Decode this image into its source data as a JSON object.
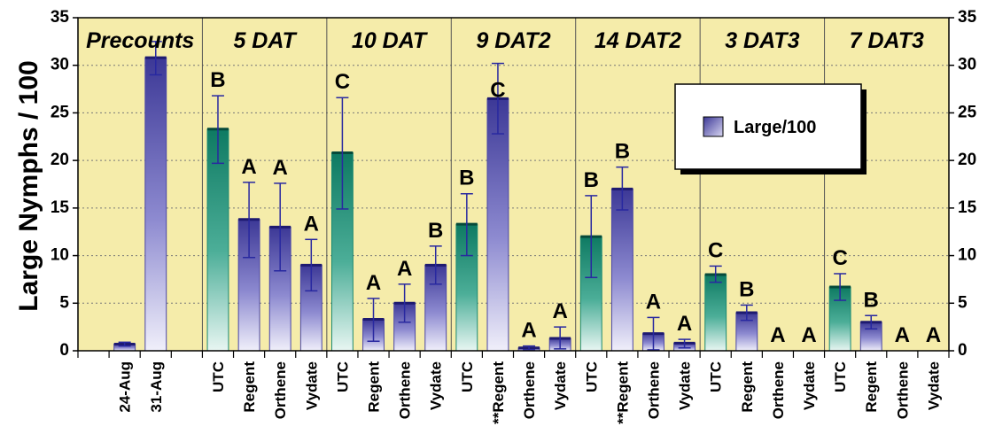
{
  "chart_data": {
    "type": "bar",
    "ylabel": "Large Nymphs / 100",
    "ylim": [
      0,
      35
    ],
    "yticks": [
      0,
      5,
      10,
      15,
      20,
      25,
      30,
      35
    ],
    "grid": "horizontal dotted",
    "legend": {
      "placement": "top-right",
      "label": "Large/100"
    },
    "colors": {
      "background": "#f5ecaa",
      "utc_bar": "#1a8a72",
      "treatment_bar": "#4a46a8",
      "error_bar": "#2828a0"
    },
    "groups": [
      {
        "label": "Precounts",
        "bars": [
          {
            "category": "24-Aug",
            "value": 0.7,
            "err_low": 0.5,
            "err_high": 0.9,
            "kind": "treatment",
            "sig": ""
          },
          {
            "category": "31-Aug",
            "value": 30.8,
            "err_low": 29.0,
            "err_high": 32.5,
            "kind": "treatment",
            "sig": ""
          }
        ]
      },
      {
        "label": "5 DAT",
        "bars": [
          {
            "category": "UTC",
            "value": 23.3,
            "err_low": 19.7,
            "err_high": 26.8,
            "kind": "utc",
            "sig": "B"
          },
          {
            "category": "Regent",
            "value": 13.8,
            "err_low": 9.8,
            "err_high": 17.7,
            "kind": "treatment",
            "sig": "A"
          },
          {
            "category": "Orthene",
            "value": 13.0,
            "err_low": 8.4,
            "err_high": 17.6,
            "kind": "treatment",
            "sig": "A"
          },
          {
            "category": "Vydate",
            "value": 9.0,
            "err_low": 6.3,
            "err_high": 11.7,
            "kind": "treatment",
            "sig": "A"
          }
        ]
      },
      {
        "label": "10 DAT",
        "bars": [
          {
            "category": "UTC",
            "value": 20.8,
            "err_low": 14.9,
            "err_high": 26.6,
            "kind": "utc",
            "sig": "C"
          },
          {
            "category": "Regent",
            "value": 3.3,
            "err_low": 1.0,
            "err_high": 5.5,
            "kind": "treatment",
            "sig": "A"
          },
          {
            "category": "Orthene",
            "value": 5.0,
            "err_low": 3.0,
            "err_high": 7.0,
            "kind": "treatment",
            "sig": "A"
          },
          {
            "category": "Vydate",
            "value": 9.0,
            "err_low": 7.0,
            "err_high": 11.0,
            "kind": "treatment",
            "sig": "B"
          }
        ]
      },
      {
        "label": "9 DAT2",
        "bars": [
          {
            "category": "UTC",
            "value": 13.3,
            "err_low": 10.0,
            "err_high": 16.5,
            "kind": "utc",
            "sig": "B"
          },
          {
            "category": "**Regent",
            "value": 26.5,
            "err_low": 22.8,
            "err_high": 30.2,
            "kind": "treatment",
            "sig": "C"
          },
          {
            "category": "Orthene",
            "value": 0.3,
            "err_low": 0.1,
            "err_high": 0.5,
            "kind": "treatment",
            "sig": "A"
          },
          {
            "category": "Vydate",
            "value": 1.3,
            "err_low": 0.2,
            "err_high": 2.5,
            "kind": "treatment",
            "sig": "A"
          }
        ]
      },
      {
        "label": "14 DAT2",
        "bars": [
          {
            "category": "UTC",
            "value": 12.0,
            "err_low": 7.7,
            "err_high": 16.3,
            "kind": "utc",
            "sig": "B"
          },
          {
            "category": "**Regent",
            "value": 17.0,
            "err_low": 14.8,
            "err_high": 19.3,
            "kind": "treatment",
            "sig": "B"
          },
          {
            "category": "Orthene",
            "value": 1.8,
            "err_low": 0.1,
            "err_high": 3.5,
            "kind": "treatment",
            "sig": "A"
          },
          {
            "category": "Vydate",
            "value": 0.8,
            "err_low": 0.3,
            "err_high": 1.2,
            "kind": "treatment",
            "sig": "A"
          }
        ]
      },
      {
        "label": "3 DAT3",
        "bars": [
          {
            "category": "UTC",
            "value": 8.0,
            "err_low": 7.2,
            "err_high": 8.9,
            "kind": "utc",
            "sig": "C"
          },
          {
            "category": "Regent",
            "value": 4.0,
            "err_low": 3.2,
            "err_high": 4.8,
            "kind": "treatment",
            "sig": "B"
          },
          {
            "category": "Orthene",
            "value": 0,
            "err_low": 0,
            "err_high": 0,
            "kind": "treatment",
            "sig": "A"
          },
          {
            "category": "Vydate",
            "value": 0,
            "err_low": 0,
            "err_high": 0,
            "kind": "treatment",
            "sig": "A"
          }
        ]
      },
      {
        "label": "7 DAT3",
        "bars": [
          {
            "category": "UTC",
            "value": 6.7,
            "err_low": 5.3,
            "err_high": 8.1,
            "kind": "utc",
            "sig": "C"
          },
          {
            "category": "Regent",
            "value": 3.0,
            "err_low": 2.3,
            "err_high": 3.7,
            "kind": "treatment",
            "sig": "B"
          },
          {
            "category": "Orthene",
            "value": 0,
            "err_low": 0,
            "err_high": 0,
            "kind": "treatment",
            "sig": "A"
          },
          {
            "category": "Vydate",
            "value": 0,
            "err_low": 0,
            "err_high": 0,
            "kind": "treatment",
            "sig": "A"
          }
        ]
      }
    ]
  }
}
